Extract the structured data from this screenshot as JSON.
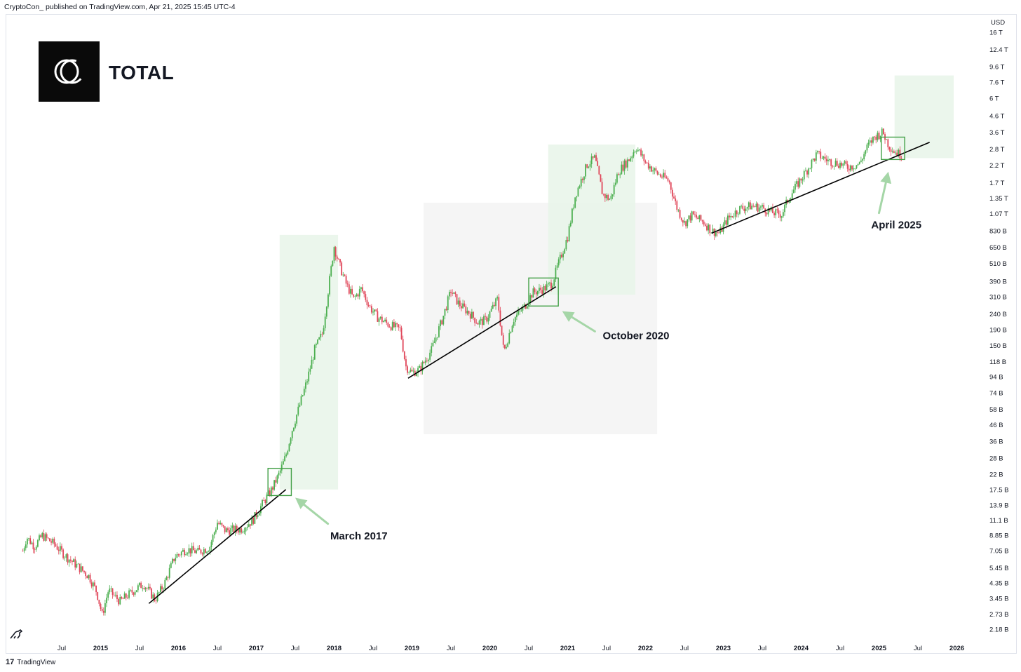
{
  "header": {
    "text": "CryptoCon_ published on TradingView.com, Apr 21, 2025 15:45 UTC-4"
  },
  "logo": {
    "icon": "cryptocon-logo-icon"
  },
  "footer": {
    "mark": "17",
    "brand": "TradingView"
  },
  "chart_data": {
    "type": "candlestick",
    "title": "TOTAL",
    "currency": "USD",
    "scale": "log",
    "y_ticks": [
      "16 T",
      "12.4 T",
      "9.6 T",
      "7.6 T",
      "6 T",
      "4.6 T",
      "3.6 T",
      "2.8 T",
      "2.2 T",
      "1.7 T",
      "1.35 T",
      "1.07 T",
      "830 B",
      "650 B",
      "510 B",
      "390 B",
      "310 B",
      "240 B",
      "190 B",
      "150 B",
      "118 B",
      "94 B",
      "74 B",
      "58 B",
      "46 B",
      "36 B",
      "28 B",
      "22 B",
      "17.5 B",
      "13.9 B",
      "11.1 B",
      "8.85 B",
      "7.05 B",
      "5.45 B",
      "4.35 B",
      "3.45 B",
      "2.73 B",
      "2.18 B"
    ],
    "y_tick_values": [
      16000,
      12400,
      9600,
      7600,
      6000,
      4600,
      3600,
      2800,
      2200,
      1700,
      1350,
      1070,
      830,
      650,
      510,
      390,
      310,
      240,
      190,
      150,
      118,
      94,
      74,
      58,
      46,
      36,
      28,
      22,
      17.5,
      13.9,
      11.1,
      8.85,
      7.05,
      5.45,
      4.35,
      3.45,
      2.73,
      2.18
    ],
    "y_unit": "billions USD",
    "x_ticks": [
      {
        "label": "Jul",
        "year": 2014.5,
        "bold": false
      },
      {
        "label": "2015",
        "year": 2015.0,
        "bold": true
      },
      {
        "label": "Jul",
        "year": 2015.5,
        "bold": false
      },
      {
        "label": "2016",
        "year": 2016.0,
        "bold": true
      },
      {
        "label": "Jul",
        "year": 2016.5,
        "bold": false
      },
      {
        "label": "2017",
        "year": 2017.0,
        "bold": true
      },
      {
        "label": "Jul",
        "year": 2017.5,
        "bold": false
      },
      {
        "label": "2018",
        "year": 2018.0,
        "bold": true
      },
      {
        "label": "Jul",
        "year": 2018.5,
        "bold": false
      },
      {
        "label": "2019",
        "year": 2019.0,
        "bold": true
      },
      {
        "label": "Jul",
        "year": 2019.5,
        "bold": false
      },
      {
        "label": "2020",
        "year": 2020.0,
        "bold": true
      },
      {
        "label": "Jul",
        "year": 2020.5,
        "bold": false
      },
      {
        "label": "2021",
        "year": 2021.0,
        "bold": true
      },
      {
        "label": "Jul",
        "year": 2021.5,
        "bold": false
      },
      {
        "label": "2022",
        "year": 2022.0,
        "bold": true
      },
      {
        "label": "Jul",
        "year": 2022.5,
        "bold": false
      },
      {
        "label": "2023",
        "year": 2023.0,
        "bold": true
      },
      {
        "label": "Jul",
        "year": 2023.5,
        "bold": false
      },
      {
        "label": "2024",
        "year": 2024.0,
        "bold": true
      },
      {
        "label": "Jul",
        "year": 2024.5,
        "bold": false
      },
      {
        "label": "2025",
        "year": 2025.0,
        "bold": true
      },
      {
        "label": "Jul",
        "year": 2025.5,
        "bold": false
      },
      {
        "label": "2026",
        "year": 2026.0,
        "bold": true
      }
    ],
    "price_path": [
      [
        2014.0,
        7.0
      ],
      [
        2014.05,
        8.6
      ],
      [
        2014.15,
        7.5
      ],
      [
        2014.25,
        8.8
      ],
      [
        2014.4,
        7.8
      ],
      [
        2014.55,
        6.5
      ],
      [
        2014.7,
        5.6
      ],
      [
        2014.85,
        4.8
      ],
      [
        2014.95,
        3.8
      ],
      [
        2015.02,
        2.7
      ],
      [
        2015.1,
        3.9
      ],
      [
        2015.25,
        3.3
      ],
      [
        2015.4,
        3.8
      ],
      [
        2015.55,
        4.3
      ],
      [
        2015.7,
        3.4
      ],
      [
        2015.82,
        4.3
      ],
      [
        2015.95,
        6.4
      ],
      [
        2016.1,
        7.2
      ],
      [
        2016.25,
        6.9
      ],
      [
        2016.4,
        7.4
      ],
      [
        2016.5,
        10.7
      ],
      [
        2016.6,
        9.5
      ],
      [
        2016.8,
        9.7
      ],
      [
        2016.95,
        11.0
      ],
      [
        2017.1,
        14.7
      ],
      [
        2017.2,
        17.6
      ],
      [
        2017.3,
        22.5
      ],
      [
        2017.38,
        29.0
      ],
      [
        2017.45,
        41.0
      ],
      [
        2017.55,
        60.0
      ],
      [
        2017.65,
        88.0
      ],
      [
        2017.75,
        141.0
      ],
      [
        2017.85,
        180.0
      ],
      [
        2017.92,
        330.0
      ],
      [
        2018.0,
        660.0
      ],
      [
        2018.05,
        530.0
      ],
      [
        2018.15,
        380.0
      ],
      [
        2018.25,
        300.0
      ],
      [
        2018.35,
        350.0
      ],
      [
        2018.45,
        270.0
      ],
      [
        2018.55,
        230.0
      ],
      [
        2018.7,
        205.0
      ],
      [
        2018.85,
        190.0
      ],
      [
        2018.92,
        110.0
      ],
      [
        2019.0,
        100.0
      ],
      [
        2019.1,
        105.0
      ],
      [
        2019.25,
        140.0
      ],
      [
        2019.4,
        230.0
      ],
      [
        2019.5,
        340.0
      ],
      [
        2019.6,
        280.0
      ],
      [
        2019.75,
        240.0
      ],
      [
        2019.85,
        210.0
      ],
      [
        2019.95,
        220.0
      ],
      [
        2020.1,
        300.0
      ],
      [
        2020.18,
        135.0
      ],
      [
        2020.3,
        220.0
      ],
      [
        2020.45,
        270.0
      ],
      [
        2020.55,
        330.0
      ],
      [
        2020.7,
        350.0
      ],
      [
        2020.8,
        380.0
      ],
      [
        2020.9,
        540.0
      ],
      [
        2021.0,
        760.0
      ],
      [
        2021.1,
        1420.0
      ],
      [
        2021.25,
        2220.0
      ],
      [
        2021.35,
        2460.0
      ],
      [
        2021.45,
        1430.0
      ],
      [
        2021.55,
        1320.0
      ],
      [
        2021.65,
        2000.0
      ],
      [
        2021.8,
        2450.0
      ],
      [
        2021.88,
        2900.0
      ],
      [
        2022.0,
        2300.0
      ],
      [
        2022.15,
        1950.0
      ],
      [
        2022.3,
        1750.0
      ],
      [
        2022.4,
        1180.0
      ],
      [
        2022.5,
        930.0
      ],
      [
        2022.6,
        1050.0
      ],
      [
        2022.75,
        940.0
      ],
      [
        2022.85,
        830.0
      ],
      [
        2022.95,
        800.0
      ],
      [
        2023.05,
        980.0
      ],
      [
        2023.2,
        1150.0
      ],
      [
        2023.35,
        1200.0
      ],
      [
        2023.5,
        1170.0
      ],
      [
        2023.65,
        1080.0
      ],
      [
        2023.75,
        1060.0
      ],
      [
        2023.85,
        1390.0
      ],
      [
        2023.95,
        1650.0
      ],
      [
        2024.1,
        2150.0
      ],
      [
        2024.2,
        2600.0
      ],
      [
        2024.35,
        2350.0
      ],
      [
        2024.5,
        2250.0
      ],
      [
        2024.6,
        2150.0
      ],
      [
        2024.75,
        2250.0
      ],
      [
        2024.85,
        2900.0
      ],
      [
        2024.95,
        3400.0
      ],
      [
        2025.05,
        3600.0
      ],
      [
        2025.12,
        3000.0
      ],
      [
        2025.2,
        2700.0
      ],
      [
        2025.3,
        2550.0
      ]
    ],
    "trendlines": [
      {
        "from": [
          2015.62,
          3.2
        ],
        "to": [
          2017.38,
          17.5
        ]
      },
      {
        "from": [
          2018.95,
          92.0
        ],
        "to": [
          2020.85,
          360.0
        ]
      },
      {
        "from": [
          2022.85,
          800.0
        ],
        "to": [
          2025.65,
          3100.0
        ]
      }
    ],
    "shaded_regions": [
      {
        "x0": 2017.3,
        "x1": 2018.05,
        "y0": 17.5,
        "y1": 780.0,
        "color": "green"
      },
      {
        "x0": 2019.15,
        "x1": 2022.15,
        "y0": 40.0,
        "y1": 1260.0,
        "color": "gray"
      },
      {
        "x0": 2020.75,
        "x1": 2021.87,
        "y0": 320.0,
        "y1": 3000.0,
        "color": "green"
      },
      {
        "x0": 2025.2,
        "x1": 2025.96,
        "y0": 2450.0,
        "y1": 8400.0,
        "color": "green"
      }
    ],
    "highlight_boxes": [
      {
        "x0": 2017.15,
        "x1": 2017.45,
        "y0": 16.0,
        "y1": 24.0
      },
      {
        "x0": 2020.5,
        "x1": 2020.88,
        "y0": 270.0,
        "y1": 410.0
      },
      {
        "x0": 2025.03,
        "x1": 2025.33,
        "y0": 2400.0,
        "y1": 3350.0
      }
    ],
    "annotations": [
      {
        "text": "March 2017",
        "at": [
          2017.95,
          8.3
        ],
        "arrow_to": [
          2017.5,
          15.5
        ],
        "arrow_from": [
          2017.92,
          10.5
        ]
      },
      {
        "text": "October 2020",
        "at": [
          2021.45,
          165.0
        ],
        "arrow_to": [
          2020.93,
          250.0
        ],
        "arrow_from": [
          2021.35,
          185.0
        ]
      },
      {
        "text": "April 2025",
        "at": [
          2024.9,
          860.0
        ],
        "arrow_to": [
          2025.12,
          2000.0
        ],
        "arrow_from": [
          2025.0,
          1080.0
        ]
      }
    ],
    "colors": {
      "up": "#26a69a",
      "down": "#ef5350",
      "candle_up": "#4caf50",
      "candle_down": "#e0475a",
      "trend": "#000000",
      "shade_green": "#e8f5e9",
      "shade_gray": "#f5f5f5",
      "box": "#43a047",
      "arrow": "#a5d6a7"
    }
  }
}
